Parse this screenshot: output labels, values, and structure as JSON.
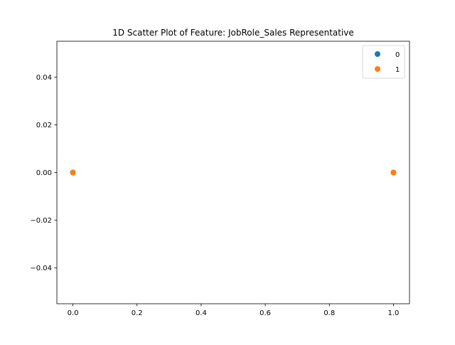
{
  "chart_data": {
    "type": "scatter",
    "title": "1D Scatter Plot of Feature: JobRole_Sales Representative",
    "xlabel": "",
    "ylabel": "",
    "xlim": [
      -0.05,
      1.05
    ],
    "ylim": [
      -0.055,
      0.055
    ],
    "x_ticks": [
      0.0,
      0.2,
      0.4,
      0.6,
      0.8,
      1.0
    ],
    "x_tick_labels": [
      "0.0",
      "0.2",
      "0.4",
      "0.6",
      "0.8",
      "1.0"
    ],
    "y_ticks": [
      0.04,
      0.02,
      0.0,
      -0.02,
      -0.04
    ],
    "y_tick_labels": [
      "0.04",
      "0.02",
      "0.00",
      "−0.02",
      "−0.04"
    ],
    "grid": false,
    "legend_position": "upper right",
    "series": [
      {
        "name": "0",
        "color": "#1f77b4",
        "points": [
          {
            "x": 0,
            "y": 0
          },
          {
            "x": 1,
            "y": 0
          }
        ]
      },
      {
        "name": "1",
        "color": "#ff7f0e",
        "points": [
          {
            "x": 0,
            "y": 0
          },
          {
            "x": 1,
            "y": 0
          }
        ]
      }
    ]
  }
}
